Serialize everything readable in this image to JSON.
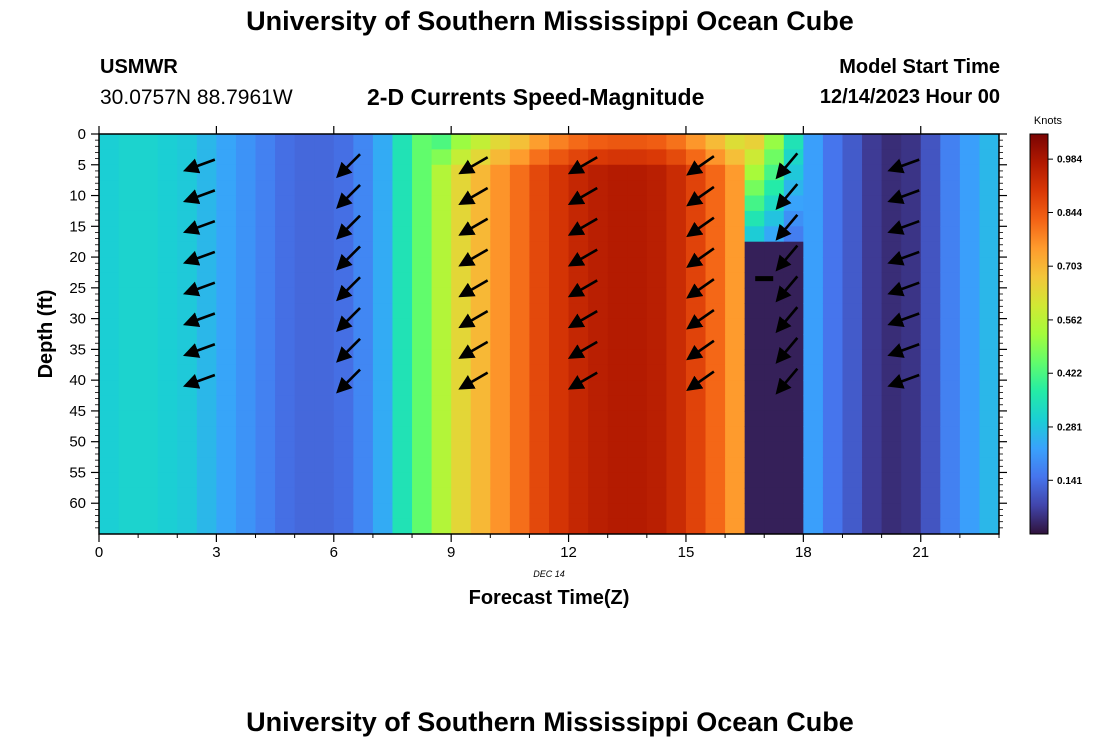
{
  "header": {
    "title": "University of Southern Mississippi Ocean Cube",
    "station_name": "USMWR",
    "station_coords": "30.0757N  88.7961W",
    "chart_title": "2-D Currents Speed-Magnitude",
    "model_label": "Model Start Time",
    "model_time": "12/14/2023 Hour 00"
  },
  "footer": {
    "title": "University of Southern Mississippi Ocean Cube"
  },
  "chart_data": {
    "type": "heatmap",
    "title": "2-D Currents Speed-Magnitude",
    "xlabel": "Forecast Time(Z)",
    "ylabel": "Depth (ft)",
    "date_label": "DEC 14",
    "x_ticks": [
      "0",
      "3",
      "6",
      "9",
      "12",
      "15",
      "18",
      "21"
    ],
    "y_ticks": [
      "0",
      "5",
      "10",
      "15",
      "20",
      "25",
      "30",
      "35",
      "40",
      "45",
      "50",
      "55",
      "60"
    ],
    "xlim": [
      0,
      23
    ],
    "ylim": [
      65,
      0
    ],
    "colorbar": {
      "label": "Knots",
      "ticks": [
        "0.984",
        "0.844",
        "0.703",
        "0.562",
        "0.422",
        "0.281",
        "0.141"
      ],
      "range": [
        0,
        1.05
      ],
      "colors": [
        "#30123b",
        "#4145ab",
        "#4675ed",
        "#39a2fc",
        "#1bcfd4",
        "#24eca6",
        "#61fc6c",
        "#a4fc3b",
        "#d1e834",
        "#f3c63a",
        "#fe9b2d",
        "#f36315",
        "#d93806",
        "#b11901",
        "#7a0403"
      ]
    },
    "speed_by_half_hour": [
      0.3,
      0.31,
      0.31,
      0.3,
      0.29,
      0.26,
      0.23,
      0.2,
      0.17,
      0.14,
      0.13,
      0.13,
      0.14,
      0.18,
      0.24,
      0.35,
      0.45,
      0.55,
      0.64,
      0.7,
      0.76,
      0.81,
      0.87,
      0.91,
      0.94,
      0.96,
      0.97,
      0.97,
      0.96,
      0.93,
      0.88,
      0.82,
      0.75,
      0.65,
      0.51,
      0.35,
      0.22,
      0.15,
      0.11,
      0.06,
      0.04,
      0.05,
      0.1,
      0.17,
      0.22,
      0.26,
      0.29,
      0.32
    ],
    "low_speed_core": {
      "x_range": [
        16.5,
        18.0
      ],
      "depth_range": [
        16,
        65
      ],
      "speed": 0.02
    },
    "arrows": [
      {
        "time": 2.6,
        "angle_deg": 200
      },
      {
        "time": 6.4,
        "angle_deg": 225
      },
      {
        "time": 9.6,
        "angle_deg": 210
      },
      {
        "time": 12.4,
        "angle_deg": 210
      },
      {
        "time": 15.4,
        "angle_deg": 215
      },
      {
        "time": 17.6,
        "angle_deg": 230
      },
      {
        "time": 20.6,
        "angle_deg": 200
      }
    ],
    "arrow_depths": [
      5,
      10,
      15,
      20,
      25,
      30,
      35,
      40
    ],
    "marker": {
      "time": 17.0,
      "depth": 23.5
    }
  }
}
